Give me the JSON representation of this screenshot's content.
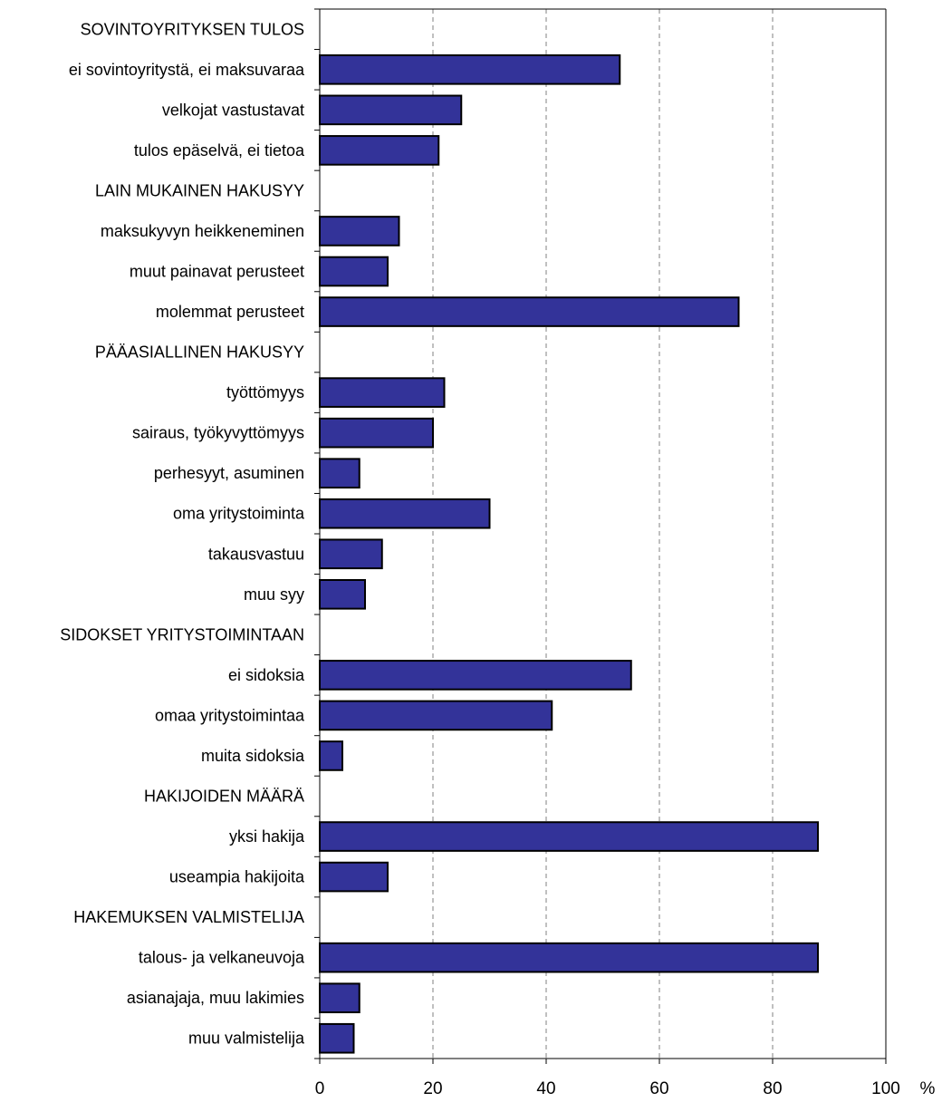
{
  "chart_data": {
    "type": "bar",
    "orientation": "horizontal",
    "categories": [
      "SOVINTOYRITYKSEN TULOS",
      "ei sovintoyritystä, ei maksuvaraa",
      "velkojat vastustavat",
      "tulos epäselvä, ei tietoa",
      "LAIN MUKAINEN HAKUSYY",
      "maksukyvyn heikkeneminen",
      "muut painavat perusteet",
      "molemmat perusteet",
      "PÄÄASIALLINEN HAKUSYY",
      "työttömyys",
      "sairaus, työkyvyttömyys",
      "perhesyyt, asuminen",
      "oma yritystoiminta",
      "takausvastuu",
      "muu syy",
      "SIDOKSET YRITYSTOIMINTAAN",
      "ei sidoksia",
      "omaa yritystoimintaa",
      "muita sidoksia",
      "HAKIJOIDEN MÄÄRÄ",
      "yksi hakija",
      "useampia hakijoita",
      "HAKEMUKSEN VALMISTELIJA",
      "talous- ja velkaneuvoja",
      "asianajaja, muu lakimies",
      "muu valmistelija"
    ],
    "values": [
      null,
      53,
      25,
      21,
      null,
      14,
      12,
      74,
      null,
      22,
      20,
      7,
      30,
      11,
      8,
      null,
      55,
      41,
      4,
      null,
      88,
      12,
      null,
      88,
      7,
      6
    ],
    "xlim": [
      0,
      100
    ],
    "xticks": [
      "0",
      "20",
      "40",
      "60",
      "80",
      "100"
    ],
    "xunit": "%",
    "grid": "vertical dashed at 20, 40, 60, 80",
    "bar_color": "#333399",
    "bar_edge_color": "#000000"
  }
}
